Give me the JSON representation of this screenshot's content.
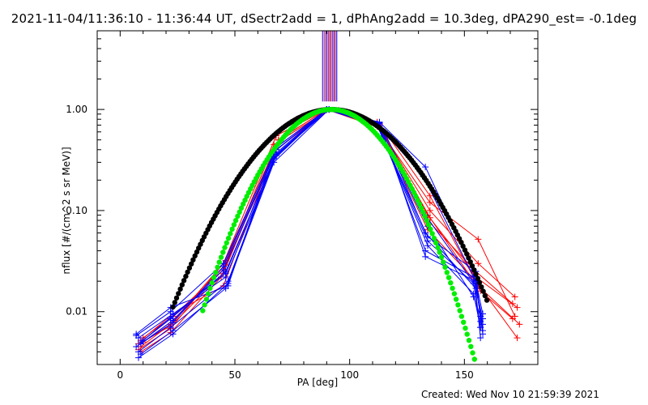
{
  "title": "2021-11-04/11:36:10 - 11:36:44 UT, dSectr2add = 1, dPhAng2add = 10.3deg, dPA290_est= -0.1deg",
  "created": "Created: Wed Nov 10 21:59:39 2021",
  "chart_data": {
    "type": "line",
    "xlabel": "PA [deg]",
    "ylabel": "nflux [#/(cm^2 s sr MeV)]",
    "xlim": [
      -10,
      182
    ],
    "ylim": [
      0.003,
      6
    ],
    "yscale": "log",
    "xticks": [
      0,
      50,
      100,
      150
    ],
    "xtick_labels": [
      "0",
      "50",
      "100",
      "150"
    ],
    "yticks": [
      0.01,
      0.1,
      1.0
    ],
    "ytick_labels": [
      "0.01",
      "0.10",
      "1.00"
    ],
    "grid": false,
    "colors": {
      "red": "#ff0000",
      "blue": "#0000ff",
      "black": "#000000",
      "green": "#00ee00",
      "purple": "#8000a0"
    },
    "vertical_lines": {
      "x": [
        88.2,
        88.9,
        89.6,
        90.2,
        90.8,
        91.4,
        92.0,
        92.6,
        93.2,
        93.8,
        94.4
      ],
      "colors": [
        "#0000ff",
        "#ff0000",
        "#0000ff",
        "#8000a0",
        "#ff0000",
        "#0000ff",
        "#ff0000",
        "#8000a0",
        "#0000ff",
        "#ff0000",
        "#0000ff"
      ],
      "y_bottom": 1.2
    },
    "series": [
      {
        "color": "red",
        "x": [
          9,
          22,
          45,
          68,
          90,
          112,
          134,
          155,
          171
        ],
        "y": [
          0.0045,
          0.0075,
          0.03,
          0.55,
          1.0,
          0.75,
          0.08,
          0.025,
          0.012
        ]
      },
      {
        "color": "red",
        "x": [
          8,
          22,
          46,
          69,
          90,
          112,
          135,
          156,
          172
        ],
        "y": [
          0.0042,
          0.0068,
          0.032,
          0.5,
          1.0,
          0.72,
          0.1,
          0.03,
          0.014
        ]
      },
      {
        "color": "red",
        "x": [
          10,
          23,
          45,
          67,
          91,
          113,
          134,
          155,
          173
        ],
        "y": [
          0.0055,
          0.009,
          0.026,
          0.45,
          1.0,
          0.7,
          0.09,
          0.022,
          0.011
        ]
      },
      {
        "color": "red",
        "x": [
          9,
          22,
          44,
          68,
          90,
          112,
          135,
          156,
          172
        ],
        "y": [
          0.004,
          0.0062,
          0.022,
          0.42,
          1.0,
          0.68,
          0.12,
          0.052,
          0.009
        ]
      },
      {
        "color": "red",
        "x": [
          10,
          23,
          46,
          68,
          91,
          113,
          135,
          156,
          174
        ],
        "y": [
          0.005,
          0.0082,
          0.029,
          0.4,
          1.0,
          0.72,
          0.14,
          0.018,
          0.0075
        ]
      },
      {
        "color": "red",
        "x": [
          8,
          22,
          45,
          67,
          90,
          112,
          134,
          155,
          173
        ],
        "y": [
          0.0048,
          0.0072,
          0.024,
          0.38,
          1.0,
          0.7,
          0.065,
          0.02,
          0.0055
        ]
      },
      {
        "color": "red",
        "x": [
          9,
          23,
          45,
          69,
          90,
          113,
          135,
          157,
          171
        ],
        "y": [
          0.0052,
          0.0095,
          0.018,
          0.5,
          1.0,
          0.66,
          0.085,
          0.016,
          0.0085
        ]
      },
      {
        "color": "blue",
        "x": [
          7,
          22,
          47,
          67,
          90,
          113,
          133,
          154,
          157
        ],
        "y": [
          0.006,
          0.011,
          0.018,
          0.38,
          1.0,
          0.75,
          0.27,
          0.026,
          0.0055
        ]
      },
      {
        "color": "blue",
        "x": [
          8,
          23,
          46,
          68,
          91,
          112,
          132,
          155,
          158
        ],
        "y": [
          0.0055,
          0.0095,
          0.022,
          0.35,
          1.0,
          0.72,
          0.22,
          0.02,
          0.006
        ]
      },
      {
        "color": "blue",
        "x": [
          9,
          22,
          46,
          67,
          90,
          113,
          133,
          155,
          158
        ],
        "y": [
          0.005,
          0.0085,
          0.025,
          0.32,
          1.0,
          0.74,
          0.09,
          0.018,
          0.0065
        ]
      },
      {
        "color": "blue",
        "x": [
          7,
          23,
          45,
          68,
          90,
          112,
          134,
          154,
          157
        ],
        "y": [
          0.0045,
          0.0078,
          0.028,
          0.4,
          1.0,
          0.7,
          0.045,
          0.015,
          0.007
        ]
      },
      {
        "color": "blue",
        "x": [
          8,
          22,
          47,
          68,
          91,
          113,
          133,
          154,
          158
        ],
        "y": [
          0.004,
          0.007,
          0.02,
          0.36,
          1.0,
          0.68,
          0.04,
          0.022,
          0.0075
        ]
      },
      {
        "color": "blue",
        "x": [
          9,
          23,
          46,
          67,
          90,
          112,
          134,
          155,
          157
        ],
        "y": [
          0.0038,
          0.0065,
          0.017,
          0.33,
          1.0,
          0.69,
          0.055,
          0.025,
          0.008
        ]
      },
      {
        "color": "blue",
        "x": [
          7,
          22,
          45,
          68,
          90,
          113,
          133,
          155,
          158
        ],
        "y": [
          0.0058,
          0.01,
          0.03,
          0.42,
          1.0,
          0.73,
          0.06,
          0.017,
          0.0085
        ]
      },
      {
        "color": "blue",
        "x": [
          8,
          23,
          47,
          67,
          91,
          112,
          134,
          154,
          157
        ],
        "y": [
          0.0035,
          0.006,
          0.019,
          0.3,
          1.0,
          0.71,
          0.07,
          0.014,
          0.009
        ]
      },
      {
        "color": "blue",
        "x": [
          10,
          22,
          46,
          68,
          90,
          113,
          133,
          155,
          158
        ],
        "y": [
          0.0052,
          0.0088,
          0.024,
          0.37,
          1.0,
          0.74,
          0.035,
          0.02,
          0.0095
        ]
      },
      {
        "color": "blue",
        "x": [
          9,
          23,
          45,
          67,
          90,
          112,
          134,
          154,
          157
        ],
        "y": [
          0.0048,
          0.0082,
          0.026,
          0.34,
          1.0,
          0.7,
          0.05,
          0.019,
          0.007
        ]
      }
    ],
    "fit_black": {
      "x_start": 23,
      "x_end": 160,
      "center": 92,
      "sigma": 23
    },
    "fit_green": {
      "x_start": 36,
      "x_end": 160,
      "center": 92,
      "sigma": 18.5
    }
  }
}
